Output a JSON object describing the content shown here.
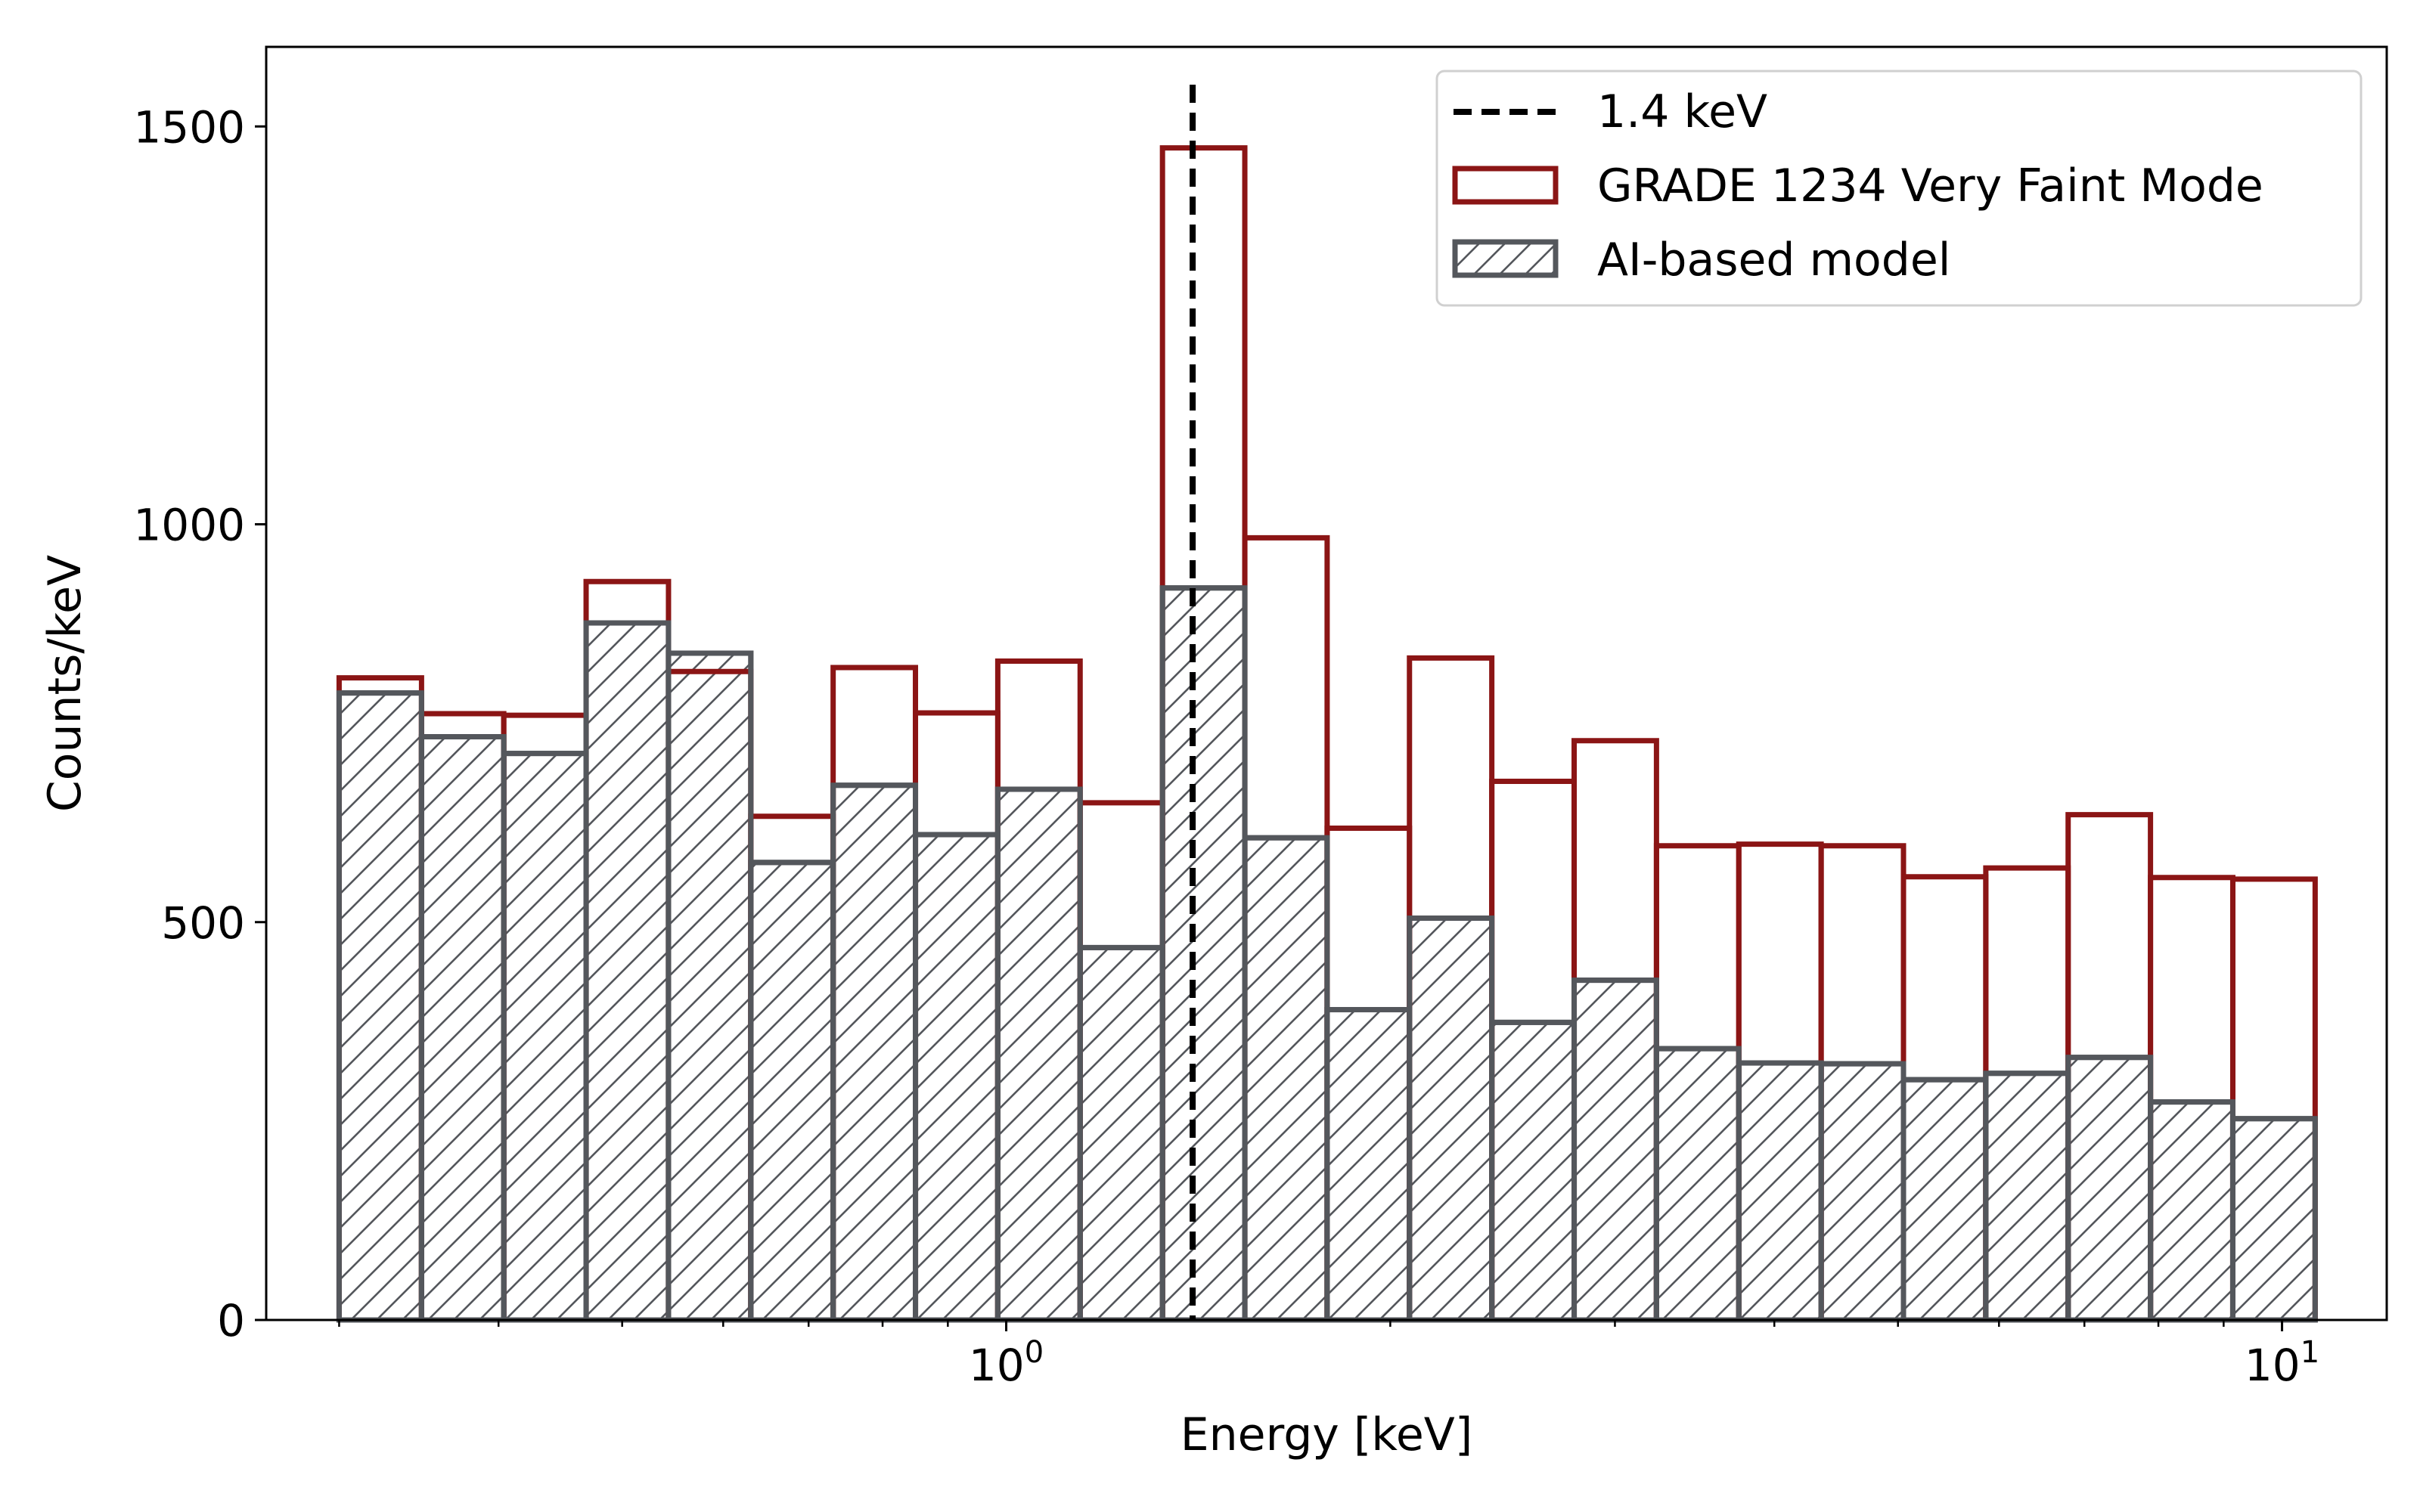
{
  "chart_data": {
    "type": "histogram",
    "x_scale": "log",
    "xlabel": "Energy [keV]",
    "ylabel": "Counts/keV",
    "xlim": [
      0.263,
      12.08
    ],
    "ylim": [
      0,
      1600
    ],
    "y_ticks": [
      0,
      500,
      1000,
      1500
    ],
    "y_tick_labels": [
      "0",
      "500",
      "1000",
      "1500"
    ],
    "x_ticks": [
      1,
      10
    ],
    "x_tick_labels": [
      {
        "base": "10",
        "exp": "0"
      },
      {
        "base": "10",
        "exp": "1"
      }
    ],
    "bin_edges": [
      0.3,
      0.3481,
      0.4038,
      0.4685,
      0.5436,
      0.6307,
      0.7317,
      0.8489,
      0.9849,
      1.1427,
      1.3258,
      1.5382,
      1.7846,
      2.0705,
      2.4022,
      2.7871,
      3.2336,
      3.7516,
      4.3527,
      5.05,
      5.859,
      6.7976,
      7.8866,
      9.1501,
      10.6161
    ],
    "vline": {
      "x": 1.4,
      "label": "1.4 keV",
      "color": "#000000"
    },
    "series": [
      {
        "name": "GRADE 1234 Very Faint Mode",
        "style": "step",
        "color": "#8b1515",
        "values": [
          807,
          762,
          760,
          928,
          815,
          633,
          820,
          763,
          828,
          650,
          1473,
          983,
          618,
          832,
          677,
          728,
          596,
          598,
          596,
          557,
          568,
          635,
          556,
          554
        ]
      },
      {
        "name": "AI-based model",
        "style": "hatched",
        "color": "#54575c",
        "values": [
          788,
          733,
          712,
          876,
          838,
          575,
          672,
          610,
          667,
          468,
          920,
          606,
          390,
          505,
          374,
          427,
          341,
          323,
          322,
          302,
          310,
          330,
          274,
          253
        ]
      }
    ]
  }
}
